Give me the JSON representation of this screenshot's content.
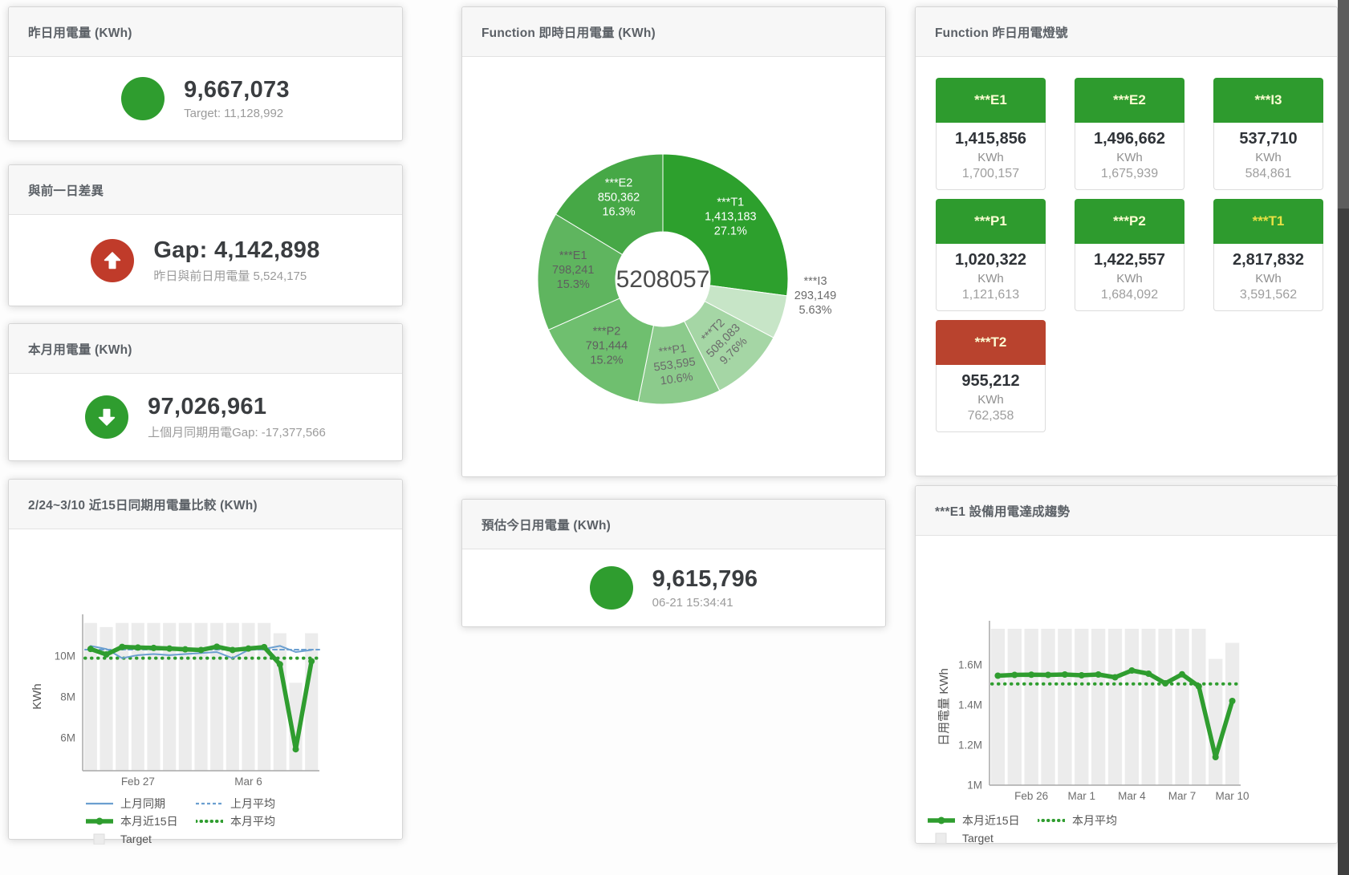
{
  "colors": {
    "green": "#2f9d2f",
    "red": "#c03b2a",
    "blue": "#6b9fd0",
    "bar_gray": "#ececec",
    "tile_green": "#2e9b2e",
    "tile_red": "#b9432e"
  },
  "cards": {
    "yesterday": {
      "title": "昨日用電量 (KWh)",
      "value": "9,667,073",
      "sub": "Target: 11,128,992"
    },
    "diff_prev_day": {
      "title": "與前一日差異",
      "value": "Gap: 4,142,898",
      "sub": "昨日與前日用電量 5,524,175"
    },
    "month": {
      "title": "本月用電量 (KWh)",
      "value": "97,026,961",
      "sub": "上個月同期用電Gap: -17,377,566"
    },
    "compare15": {
      "title": "2/24~3/10 近15日同期用電量比較 (KWh)"
    },
    "realtime": {
      "title": "Function 即時日用電量 (KWh)"
    },
    "estimate": {
      "title": "預估今日用電量 (KWh)",
      "value": "9,615,796",
      "sub": "06-21 15:34:41"
    },
    "lamp": {
      "title": "Function 昨日用電燈號",
      "tiles": [
        {
          "id": "e1",
          "label": "***E1",
          "value": "1,415,856",
          "unit": "KWh",
          "target": "1,700,157",
          "header_color": "#2e9b2e",
          "label_color": "#fcfcd2"
        },
        {
          "id": "e2",
          "label": "***E2",
          "value": "1,496,662",
          "unit": "KWh",
          "target": "1,675,939",
          "header_color": "#2e9b2e",
          "label_color": "#fcfcd2"
        },
        {
          "id": "i3",
          "label": "***I3",
          "value": "537,710",
          "unit": "KWh",
          "target": "584,861",
          "header_color": "#2e9b2e",
          "label_color": "#fcfcd2"
        },
        {
          "id": "p1",
          "label": "***P1",
          "value": "1,020,322",
          "unit": "KWh",
          "target": "1,121,613",
          "header_color": "#2e9b2e",
          "label_color": "#fcfcd2"
        },
        {
          "id": "p2",
          "label": "***P2",
          "value": "1,422,557",
          "unit": "KWh",
          "target": "1,684,092",
          "header_color": "#2e9b2e",
          "label_color": "#fcfcd2"
        },
        {
          "id": "t1",
          "label": "***T1",
          "value": "2,817,832",
          "unit": "KWh",
          "target": "3,591,562",
          "header_color": "#2e9b2e",
          "label_color": "#e8e044"
        },
        {
          "id": "t2",
          "label": "***T2",
          "value": "955,212",
          "unit": "KWh",
          "target": "762,358",
          "header_color": "#b9432e",
          "label_color": "#fcfcd2"
        }
      ]
    },
    "e1trend": {
      "title": "***E1 設備用電達成趨勢"
    }
  },
  "chart_data": [
    {
      "id": "realtime_pie",
      "type": "pie",
      "title": "Function 即時日用電量 (KWh)",
      "center_label": "5208057",
      "total": 5208057,
      "slices": [
        {
          "name": "***T1",
          "value": 1413183,
          "display": "1,413,183",
          "pct": "27.1%",
          "color": "#2da02d",
          "label_color": "#ffffff",
          "label_pos": "inside",
          "rotate": 0
        },
        {
          "name": "***I3",
          "value": 293149,
          "display": "293,149",
          "pct": "5.63%",
          "color": "#c7e5c7",
          "label_color": "#6b6b6b",
          "label_pos": "outside",
          "rotate": 0
        },
        {
          "name": "***T2",
          "value": 508083,
          "display": "508,083",
          "pct": "9.76%",
          "color": "#a5d6a5",
          "label_color": "#6b6b6b",
          "label_pos": "inside",
          "rotate": -45
        },
        {
          "name": "***P1",
          "value": 553595,
          "display": "553,595",
          "pct": "10.6%",
          "color": "#8ccb8c",
          "label_color": "#6b6b6b",
          "label_pos": "inside",
          "rotate": -8
        },
        {
          "name": "***P2",
          "value": 791444,
          "display": "791,444",
          "pct": "15.2%",
          "color": "#6fbf6f",
          "label_color": "#5f5f5f",
          "label_pos": "inside",
          "rotate": 0
        },
        {
          "name": "***E1",
          "value": 798241,
          "display": "798,241",
          "pct": "15.3%",
          "color": "#5fb55f",
          "label_color": "#5f5f5f",
          "label_pos": "inside",
          "rotate": 0
        },
        {
          "name": "***E2",
          "value": 850362,
          "display": "850,362",
          "pct": "16.3%",
          "color": "#46a846",
          "label_color": "#ffffff",
          "label_pos": "inside",
          "rotate": 0
        }
      ],
      "legend_position": "none"
    },
    {
      "id": "compare15",
      "type": "line",
      "title": "2/24~3/10 近15日同期用電量比較 (KWh)",
      "xlabel": "",
      "ylabel": "KWh",
      "ylim": [
        4400000,
        11650000
      ],
      "yticks": [
        {
          "value": 6000000,
          "label": "6M"
        },
        {
          "value": 8000000,
          "label": "8M"
        },
        {
          "value": 10000000,
          "label": "10M"
        }
      ],
      "x_count": 15,
      "xticks": [
        {
          "index": 3,
          "label": "Feb 27"
        },
        {
          "index": 10,
          "label": "Mar 6"
        }
      ],
      "grid": false,
      "legend_position": "bottom",
      "bars": {
        "name": "Target",
        "values": [
          11620000,
          11420000,
          11620000,
          11620000,
          11620000,
          11620000,
          11620000,
          11620000,
          11620000,
          11620000,
          11620000,
          11620000,
          11120000,
          8700000,
          11120000
        ]
      },
      "series": [
        {
          "name": "上月同期",
          "style": "solid",
          "color": "blue",
          "width": 2,
          "values": [
            10500000,
            10350000,
            9900000,
            10050000,
            10100000,
            10050000,
            10100000,
            10150000,
            10200000,
            9900000,
            10300000,
            10350000,
            10500000,
            10200000,
            10300000
          ]
        },
        {
          "name": "上月平均",
          "style": "dashed",
          "color": "blue",
          "width": 2,
          "const": 10320000
        },
        {
          "name": "本月近15日",
          "style": "solid",
          "color": "green",
          "width": 5.5,
          "markers": true,
          "values": [
            10350000,
            10080000,
            10450000,
            10420000,
            10400000,
            10370000,
            10330000,
            10300000,
            10460000,
            10300000,
            10370000,
            10440000,
            9600000,
            5450000,
            9750000
          ]
        },
        {
          "name": "本月平均",
          "style": "dotted",
          "color": "green",
          "width": 4,
          "const": 9900000
        }
      ]
    },
    {
      "id": "e1trend",
      "type": "line",
      "title": "***E1 設備用電達成趨勢",
      "xlabel": "",
      "ylabel": "日用電量 KWh",
      "ylim": [
        1000000,
        1780000
      ],
      "yticks": [
        {
          "value": 1000000,
          "label": "1M"
        },
        {
          "value": 1200000,
          "label": "1.2M"
        },
        {
          "value": 1400000,
          "label": "1.4M"
        },
        {
          "value": 1600000,
          "label": "1.6M"
        }
      ],
      "x_count": 15,
      "xticks": [
        {
          "index": 2,
          "label": "Feb 26"
        },
        {
          "index": 5,
          "label": "Mar 1"
        },
        {
          "index": 8,
          "label": "Mar 4"
        },
        {
          "index": 11,
          "label": "Mar 7"
        },
        {
          "index": 14,
          "label": "Mar 10"
        }
      ],
      "grid": false,
      "legend_position": "bottom",
      "bars": {
        "name": "Target",
        "values": [
          1780000,
          1780000,
          1780000,
          1780000,
          1780000,
          1780000,
          1780000,
          1780000,
          1780000,
          1780000,
          1780000,
          1780000,
          1780000,
          1630000,
          1710000
        ]
      },
      "series": [
        {
          "name": "本月近15日",
          "style": "solid",
          "color": "green",
          "width": 5.5,
          "markers": true,
          "values": [
            1546000,
            1550000,
            1551000,
            1550000,
            1552000,
            1548000,
            1552000,
            1538000,
            1572000,
            1556000,
            1508000,
            1553000,
            1493000,
            1140000,
            1420000
          ]
        },
        {
          "name": "本月平均",
          "style": "dotted",
          "color": "green",
          "width": 4,
          "const": 1505000
        }
      ]
    }
  ]
}
